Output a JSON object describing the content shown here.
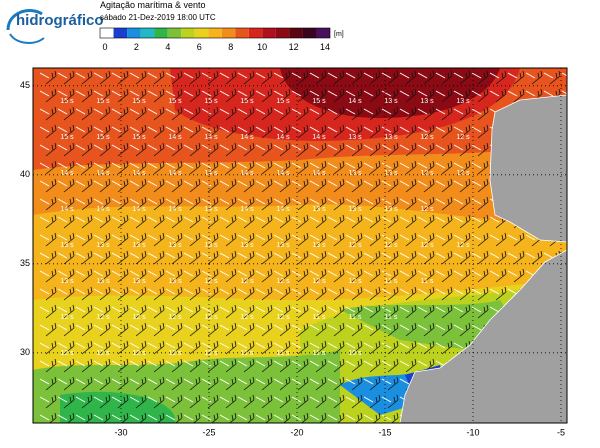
{
  "header": {
    "title": "Agitação marítima & vento",
    "subtitle": "sábado 21-Dez-2019 18:00 UTC"
  },
  "logo": {
    "name": "hidrográfico"
  },
  "colorbar": {
    "labels": [
      0,
      2,
      4,
      6,
      8,
      10,
      12,
      14
    ],
    "unit": "[m]",
    "colors": [
      "#ffffff",
      "#1a3fd0",
      "#1a8fe0",
      "#22b8c8",
      "#2fb54a",
      "#7cc13a",
      "#bcd21e",
      "#e8d21e",
      "#f5b41b",
      "#f28d1c",
      "#e8541e",
      "#d7261e",
      "#b0101a",
      "#8b0a14",
      "#5a0610",
      "#3a0420",
      "#4a1060"
    ]
  },
  "map": {
    "lat_ticks": [
      45,
      40,
      35,
      30
    ],
    "lon_ticks": [
      -30,
      -25,
      -20,
      -15,
      -10,
      -5
    ],
    "period_labels": [
      [
        "15 s",
        "15 s",
        "15 s",
        "15 s",
        "15 s",
        "15 s",
        "15 s",
        "15 s",
        "14 s",
        "13 s",
        "13 s",
        "13 s"
      ],
      [
        "15 s",
        "15 s",
        "15 s",
        "14 s",
        "14 s",
        "14 s",
        "14 s",
        "14 s",
        "13 s",
        "13 s",
        "12 s",
        "12 s"
      ],
      [
        "14 s",
        "14 s",
        "14 s",
        "14 s",
        "14 s",
        "14 s",
        "14 s",
        "14 s",
        "13 s",
        "13 s",
        "12 s",
        "12 s"
      ],
      [
        "14 s",
        "14 s",
        "14 s",
        "14 s",
        "14 s",
        "14 s",
        "14 s",
        "13 s",
        "13 s",
        "13 s",
        "12 s"
      ],
      [
        "13 s",
        "13 s",
        "13 s",
        "13 s",
        "13 s",
        "13 s",
        "13 s",
        "13 s",
        "12 s",
        "12 s",
        "12 s",
        "12 s"
      ],
      [
        "13 s",
        "13 s",
        "13 s",
        "13 s",
        "12 s",
        "12 s",
        "12 s",
        "12 s",
        "12 s",
        "11 s",
        "11 s"
      ],
      [
        "12 s",
        "12 s",
        "12 s",
        "12 s",
        "12 s",
        "12 s",
        "12 s",
        "11 s",
        "11 s",
        "11 s"
      ],
      [
        "12 s",
        "12 s",
        "12 s",
        "12 s",
        "12 s",
        "11 s",
        "11 s",
        "11 s",
        "10 s"
      ]
    ]
  }
}
